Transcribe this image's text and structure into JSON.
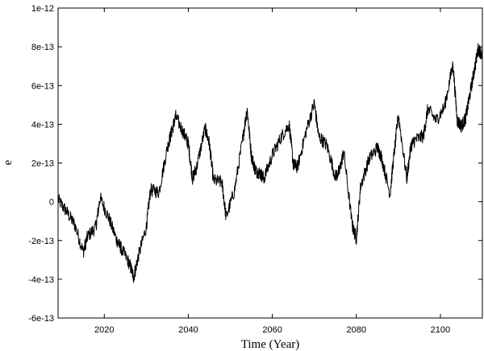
{
  "chart_data": {
    "type": "line",
    "title": "",
    "xlabel": "Time (Year)",
    "ylabel": "e",
    "xlim": [
      2009,
      2110
    ],
    "ylim": [
      -6e-13,
      1e-12
    ],
    "grid": false,
    "legend": "none",
    "line_color": "#000000",
    "x_ticks": [
      2020,
      2040,
      2060,
      2080,
      2100
    ],
    "x_tick_labels": [
      "2020",
      "2040",
      "2060",
      "2080",
      "2100"
    ],
    "y_ticks": [
      -6e-13,
      -4e-13,
      -2e-13,
      0,
      2e-13,
      4e-13,
      6e-13,
      8e-13,
      1e-12
    ],
    "y_tick_labels": [
      "-6e-13",
      "-4e-13",
      "-2e-13",
      "0",
      "2e-13",
      "4e-13",
      "6e-13",
      "8e-13",
      "1e-12"
    ],
    "series": [
      {
        "x": [
          2009,
          2011,
          2013,
          2015,
          2016,
          2018,
          2019,
          2021,
          2023,
          2024,
          2026,
          2027,
          2028,
          2030,
          2031,
          2033,
          2035,
          2036,
          2037,
          2039,
          2040,
          2041,
          2042,
          2044,
          2045,
          2046,
          2048,
          2049,
          2051,
          2053,
          2054,
          2055,
          2056,
          2057,
          2058,
          2060,
          2062,
          2064,
          2065,
          2066,
          2068,
          2070,
          2071,
          2073,
          2075,
          2076,
          2077,
          2079,
          2080,
          2081,
          2083,
          2085,
          2086,
          2088,
          2089,
          2090,
          2092,
          2093,
          2094,
          2096,
          2097,
          2099,
          2101,
          2103,
          2104,
          2105,
          2106,
          2107,
          2108,
          2109,
          2110
        ],
        "y": [
          1e-14,
          -5e-14,
          -1.2e-13,
          -2.6e-13,
          -1.8e-13,
          -1.3e-13,
          2e-14,
          -8e-14,
          -2e-13,
          -2.4e-13,
          -3.2e-13,
          -3.9e-13,
          -2.9e-13,
          -1.3e-13,
          6e-14,
          5e-14,
          2.8e-13,
          3.6e-13,
          4.4e-13,
          3.5e-13,
          3e-13,
          1.2e-13,
          1.8e-13,
          3.8e-13,
          3e-13,
          1.1e-13,
          1e-13,
          -8e-14,
          6e-14,
          3.3e-13,
          4.8e-13,
          2.4e-13,
          1.6e-13,
          1.5e-13,
          1.2e-13,
          2.4e-13,
          3.3e-13,
          4e-13,
          1.9e-13,
          1.8e-13,
          3.6e-13,
          5.1e-13,
          3.4e-13,
          2.9e-13,
          1.3e-13,
          1.6e-13,
          2.6e-13,
          -1.2e-13,
          -1.9e-13,
          8e-14,
          2.2e-13,
          2.8e-13,
          2.3e-13,
          4e-14,
          2.5e-13,
          4.5e-13,
          1.2e-13,
          2.9e-13,
          3.2e-13,
          3.4e-13,
          4.8e-13,
          4.2e-13,
          4.9e-13,
          7.1e-13,
          4.2e-13,
          3.9e-13,
          4.3e-13,
          5.5e-13,
          6.7e-13,
          7.9e-13,
          7.6e-13
        ]
      }
    ]
  }
}
